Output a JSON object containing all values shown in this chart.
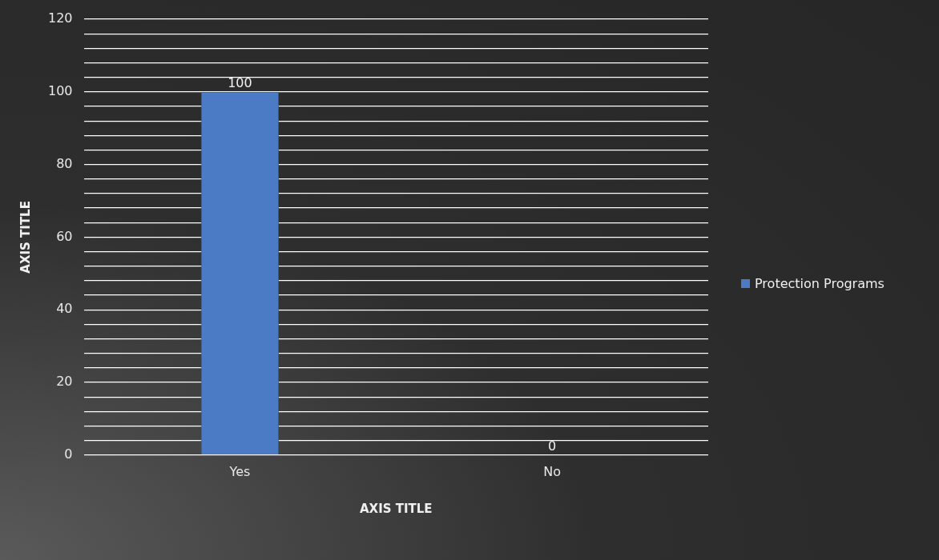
{
  "chart_data": {
    "type": "bar",
    "xlabel": "AXIS TITLE",
    "ylabel": "AXIS TITLE",
    "categories": [
      "Yes",
      "No"
    ],
    "series": [
      {
        "name": "Protection Programs",
        "color": "#4a7bc4",
        "values": [
          100,
          0
        ]
      }
    ],
    "ylim": [
      0,
      120
    ],
    "yticks": [
      0,
      {
        "value": 4,
        "label": null
      },
      {
        "value": 8,
        "label": null
      },
      {
        "value": 12,
        "label": null
      },
      {
        "value": 16,
        "label": null
      },
      20,
      {
        "value": 24,
        "label": null
      },
      {
        "value": 28,
        "label": null
      },
      {
        "value": 32,
        "label": null
      },
      {
        "value": 36,
        "label": null
      },
      40,
      {
        "value": 44,
        "label": null
      },
      {
        "value": 48,
        "label": null
      },
      {
        "value": 52,
        "label": null
      },
      {
        "value": 56,
        "label": null
      },
      60,
      {
        "value": 64,
        "label": null
      },
      {
        "value": 68,
        "label": null
      },
      {
        "value": 72,
        "label": null
      },
      {
        "value": 76,
        "label": null
      },
      80,
      {
        "value": 84,
        "label": null
      },
      {
        "value": 88,
        "label": null
      },
      {
        "value": 92,
        "label": null
      },
      {
        "value": 96,
        "label": null
      },
      100,
      {
        "value": 104,
        "label": null
      },
      {
        "value": 108,
        "label": null
      },
      {
        "value": 112,
        "label": null
      },
      {
        "value": 116,
        "label": null
      },
      120
    ],
    "grid": "y",
    "legend": "right",
    "data_labels": true
  }
}
